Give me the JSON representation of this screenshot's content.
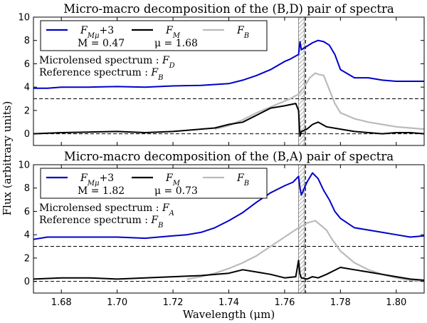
{
  "chart_data": [
    {
      "type": "line",
      "title": "Micro-macro decomposition of the (B,D) pair of spectra",
      "xlim": [
        1.67,
        1.81
      ],
      "ylim": [
        -1,
        10
      ],
      "yticks": [
        0,
        2,
        4,
        6,
        8,
        10
      ],
      "legend_placement": "top-left",
      "legend": {
        "s1": "F",
        "s1_sub": "Mμ",
        "s1_suffix": "+3",
        "s2": "F",
        "s2_sub": "M",
        "s3": "F",
        "s3_sub": "B",
        "m_text": "M = 0.47",
        "mu_text": "μ = 1.68"
      },
      "annotations": {
        "micro": "Microlensed spectrum : ",
        "micro_f": "F",
        "micro_sub": "D",
        "ref": "Reference spectrum : ",
        "ref_f": "F",
        "ref_sub": "B"
      },
      "hlines": [
        3,
        0
      ],
      "hatched_band": [
        1.7655,
        1.7665
      ],
      "vline_dashed": 1.7675,
      "series": [
        {
          "name": "F_Mμ+3",
          "color": "#0000cc",
          "x": [
            1.67,
            1.675,
            1.68,
            1.69,
            1.7,
            1.71,
            1.72,
            1.73,
            1.74,
            1.745,
            1.75,
            1.755,
            1.76,
            1.762,
            1.765,
            1.7655,
            1.766,
            1.768,
            1.77,
            1.772,
            1.774,
            1.776,
            1.778,
            1.78,
            1.785,
            1.79,
            1.795,
            1.8,
            1.805,
            1.81
          ],
          "y": [
            3.9,
            3.9,
            4.0,
            4.0,
            4.05,
            4.0,
            4.1,
            4.15,
            4.3,
            4.6,
            5.0,
            5.5,
            6.2,
            6.4,
            6.8,
            7.9,
            7.2,
            7.5,
            7.8,
            8.0,
            7.9,
            7.6,
            6.8,
            5.5,
            4.8,
            4.8,
            4.6,
            4.5,
            4.5,
            4.5
          ]
        },
        {
          "name": "F_M",
          "color": "#000000",
          "x": [
            1.67,
            1.68,
            1.69,
            1.7,
            1.71,
            1.72,
            1.73,
            1.735,
            1.74,
            1.745,
            1.75,
            1.755,
            1.76,
            1.764,
            1.765,
            1.7655,
            1.766,
            1.768,
            1.77,
            1.772,
            1.775,
            1.78,
            1.785,
            1.79,
            1.795,
            1.8,
            1.805,
            1.81
          ],
          "y": [
            0.0,
            0.1,
            0.15,
            0.2,
            0.1,
            0.2,
            0.4,
            0.5,
            0.8,
            1.0,
            1.6,
            2.2,
            2.4,
            2.6,
            2.0,
            -0.2,
            0.2,
            0.4,
            0.8,
            1.0,
            0.6,
            0.4,
            0.2,
            0.1,
            0.0,
            0.1,
            0.1,
            0.0
          ]
        },
        {
          "name": "F_B",
          "color": "#bbbbbb",
          "x": [
            1.735,
            1.74,
            1.745,
            1.75,
            1.755,
            1.76,
            1.762,
            1.765,
            1.767,
            1.769,
            1.771,
            1.772,
            1.774,
            1.776,
            1.778,
            1.78,
            1.785,
            1.79,
            1.795,
            1.8,
            1.805,
            1.81
          ],
          "y": [
            0.4,
            0.7,
            1.2,
            1.8,
            2.3,
            2.8,
            3.0,
            3.4,
            4.0,
            4.8,
            5.2,
            5.1,
            5.0,
            3.8,
            2.6,
            1.8,
            1.3,
            1.0,
            0.8,
            0.6,
            0.5,
            0.4
          ]
        }
      ]
    },
    {
      "type": "line",
      "title": "Micro-macro decomposition of the (B,A) pair of spectra",
      "xlabel": "Wavelength (μm)",
      "xlim": [
        1.67,
        1.81
      ],
      "ylim": [
        -1,
        10
      ],
      "xticks": [
        1.68,
        1.7,
        1.72,
        1.74,
        1.76,
        1.78,
        1.8
      ],
      "yticks": [
        0,
        2,
        4,
        6,
        8,
        10
      ],
      "legend_placement": "top-left",
      "legend": {
        "s1": "F",
        "s1_sub": "Mμ",
        "s1_suffix": "+3",
        "s2": "F",
        "s2_sub": "M",
        "s3": "F",
        "s3_sub": "B",
        "m_text": "M = 1.82",
        "mu_text": "μ = 0.73"
      },
      "annotations": {
        "micro": "Microlensed spectrum : ",
        "micro_f": "F",
        "micro_sub": "A",
        "ref": "Reference spectrum : ",
        "ref_f": "F",
        "ref_sub": "B"
      },
      "hlines": [
        3,
        0
      ],
      "hatched_band": [
        1.7655,
        1.7665
      ],
      "vline_dashed": 1.7675,
      "series": [
        {
          "name": "F_Mμ+3",
          "color": "#0000cc",
          "x": [
            1.67,
            1.675,
            1.68,
            1.69,
            1.7,
            1.71,
            1.72,
            1.725,
            1.73,
            1.735,
            1.74,
            1.745,
            1.75,
            1.755,
            1.76,
            1.763,
            1.765,
            1.7655,
            1.766,
            1.768,
            1.77,
            1.772,
            1.774,
            1.776,
            1.778,
            1.78,
            1.785,
            1.79,
            1.795,
            1.8,
            1.805,
            1.81
          ],
          "y": [
            3.6,
            3.8,
            3.8,
            3.8,
            3.8,
            3.7,
            3.9,
            4.0,
            4.2,
            4.6,
            5.2,
            5.9,
            6.8,
            7.6,
            8.2,
            8.5,
            9.0,
            8.0,
            7.4,
            8.5,
            9.3,
            8.8,
            7.8,
            7.0,
            6.0,
            5.4,
            4.6,
            4.4,
            4.2,
            4.0,
            3.8,
            3.9
          ]
        },
        {
          "name": "F_M",
          "color": "#000000",
          "x": [
            1.67,
            1.68,
            1.69,
            1.7,
            1.71,
            1.72,
            1.73,
            1.74,
            1.745,
            1.75,
            1.755,
            1.76,
            1.764,
            1.765,
            1.7655,
            1.766,
            1.768,
            1.77,
            1.772,
            1.775,
            1.78,
            1.785,
            1.79,
            1.795,
            1.8,
            1.805,
            1.81
          ],
          "y": [
            0.2,
            0.3,
            0.3,
            0.2,
            0.3,
            0.4,
            0.5,
            0.7,
            1.0,
            0.8,
            0.6,
            0.3,
            0.4,
            1.8,
            0.6,
            0.3,
            0.2,
            0.4,
            0.3,
            0.6,
            1.2,
            1.0,
            0.8,
            0.6,
            0.4,
            0.2,
            0.1
          ]
        },
        {
          "name": "F_B",
          "color": "#bbbbbb",
          "x": [
            1.725,
            1.73,
            1.735,
            1.74,
            1.745,
            1.75,
            1.755,
            1.76,
            1.765,
            1.768,
            1.771,
            1.773,
            1.775,
            1.777,
            1.78,
            1.785,
            1.79,
            1.795,
            1.8,
            1.805,
            1.81
          ],
          "y": [
            0.2,
            0.4,
            0.7,
            1.1,
            1.6,
            2.2,
            3.0,
            3.8,
            4.6,
            5.0,
            5.2,
            4.8,
            4.4,
            3.6,
            2.6,
            1.6,
            1.0,
            0.6,
            0.3,
            0.1,
            0.0
          ]
        }
      ]
    }
  ],
  "shared": {
    "ylabel": "Flux (arbitrary units)"
  }
}
